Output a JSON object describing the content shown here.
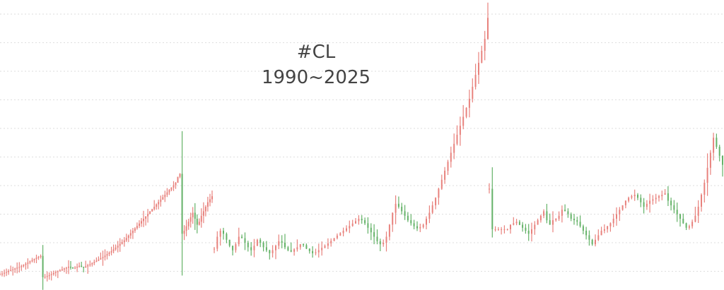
{
  "chart_data": {
    "type": "candlestick",
    "title": "#CL",
    "subtitle": "1990~2025",
    "grid": true,
    "colors": {
      "up": "#e8827d",
      "down": "#64b268",
      "grid": "#dedede",
      "text": "#444444"
    },
    "series": [
      {
        "values": [
          14,
          17,
          20,
          22,
          26,
          29,
          31,
          34,
          37,
          39,
          42,
          46,
          50,
          54,
          58,
          62,
          66,
          70,
          73,
          76,
          5,
          6,
          9,
          12,
          15,
          19,
          22,
          25,
          28,
          31,
          34,
          37,
          40,
          37,
          34,
          37,
          40,
          43,
          40,
          37,
          41,
          45,
          48,
          52,
          56,
          60,
          64,
          68,
          72,
          77,
          82,
          87,
          92,
          98,
          104,
          110,
          116,
          122,
          128,
          136,
          144,
          152,
          160,
          168,
          176,
          184,
          192,
          200,
          208,
          216,
          224,
          232,
          240,
          248,
          256,
          264,
          272,
          280,
          288,
          296,
          304,
          312,
          320,
          340,
          350,
          150,
          160,
          175,
          190,
          205,
          220,
          200,
          180,
          190,
          210,
          225,
          240,
          255,
          265,
          275
        ]
      },
      {
        "values": [
          100,
          140,
          160,
          150,
          130,
          110,
          95,
          115,
          140,
          135,
          120,
          105,
          95,
          110,
          130,
          120,
          105,
          95,
          85,
          95,
          110,
          125,
          120,
          105,
          95,
          90,
          98,
          105,
          115,
          112,
          100,
          92,
          85,
          88,
          95,
          103,
          110,
          118,
          126,
          135,
          144,
          152,
          160,
          168,
          176,
          184,
          192,
          200,
          195,
          185,
          170,
          155,
          140,
          125,
          115,
          120,
          140,
          180,
          220,
          250,
          240,
          225,
          210,
          195,
          185,
          175,
          168,
          172,
          180,
          200,
          220,
          245,
          270,
          300,
          330,
          360,
          390,
          420,
          450,
          480,
          510,
          540,
          570,
          600,
          640,
          680,
          720,
          760,
          800,
          870
        ]
      },
      {
        "values": [
          300,
          165,
          165,
          165,
          165,
          165,
          165,
          180,
          185,
          190,
          180,
          170,
          160,
          150,
          165,
          180,
          195,
          210,
          225,
          195,
          180,
          195,
          200,
          210,
          230,
          225,
          215,
          200,
          195,
          190,
          175,
          160,
          145,
          130,
          115,
          130,
          145,
          160,
          165,
          175,
          185,
          200,
          215,
          230,
          245,
          260,
          270,
          275,
          280,
          270,
          255,
          240,
          250,
          260,
          265,
          270,
          275,
          280,
          285,
          260,
          245,
          230,
          215,
          200,
          185,
          170,
          175,
          190,
          210,
          240,
          280,
          320,
          370,
          420,
          470,
          440,
          410,
          380
        ]
      }
    ]
  }
}
